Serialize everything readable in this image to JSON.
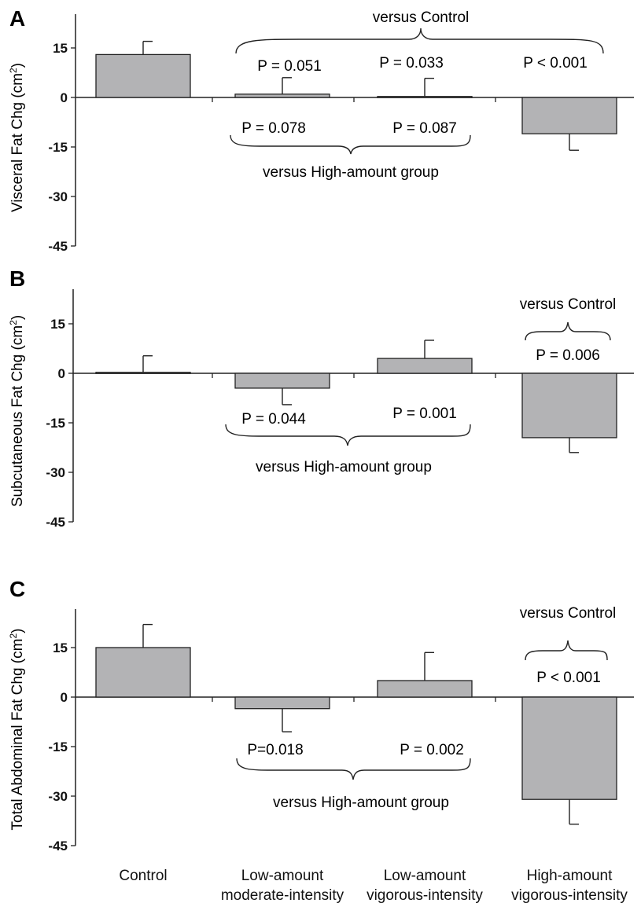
{
  "chart_data": [
    {
      "type": "bar",
      "panel_letter": "A",
      "ylabel": "Visceral Fat Chg (cm²)",
      "ylabel_base": "Visceral Fat Chg (cm",
      "ylabel_sup": "2",
      "ylabel_end": ")",
      "yticks": [
        "15",
        "0",
        "-15",
        "-30",
        "-45"
      ],
      "ylim": [
        -45,
        25
      ],
      "categories": [
        "Control",
        "Low-amount moderate-intensity",
        "Low-amount vigorous-intensity",
        "High-amount vigorous-intensity"
      ],
      "values": [
        13.0,
        1.0,
        0.3,
        -11.0
      ],
      "errors": [
        4.0,
        5.0,
        5.5,
        5.0
      ],
      "annotations": {
        "top_label": "versus Control",
        "top_pvalues": [
          "P = 0.051",
          "P = 0.033",
          "P < 0.001"
        ],
        "bottom_label": "versus High-amount group",
        "bottom_pvalues": [
          "P = 0.078",
          "P = 0.087"
        ]
      }
    },
    {
      "type": "bar",
      "panel_letter": "B",
      "ylabel": "Subcutaneous Fat Chg (cm²)",
      "ylabel_base": "Subcutaneous Fat Chg (cm",
      "ylabel_sup": "2",
      "ylabel_end": ")",
      "yticks": [
        "15",
        "0",
        "-15",
        "-30",
        "-45"
      ],
      "ylim": [
        -45,
        25
      ],
      "categories": [
        "Control",
        "Low-amount moderate-intensity",
        "Low-amount vigorous-intensity",
        "High-amount vigorous-intensity"
      ],
      "values": [
        0.3,
        -4.5,
        4.5,
        -19.5
      ],
      "errors": [
        5.0,
        5.0,
        5.5,
        4.5
      ],
      "annotations": {
        "top_label": "versus Control",
        "top_pvalues": [
          "P = 0.006"
        ],
        "bottom_label": "versus High-amount group",
        "bottom_pvalues": [
          "P = 0.044",
          "P = 0.001"
        ]
      }
    },
    {
      "type": "bar",
      "panel_letter": "C",
      "ylabel": "Total Abdominal Fat Chg (cm²)",
      "ylabel_base": "Total Abdominal Fat Chg (cm",
      "ylabel_sup": "2",
      "ylabel_end": ")",
      "yticks": [
        "15",
        "0",
        "-15",
        "-30",
        "-45"
      ],
      "ylim": [
        -45,
        25
      ],
      "categories": [
        "Control",
        "Low-amount moderate-intensity",
        "Low-amount vigorous-intensity",
        "High-amount vigorous-intensity"
      ],
      "values": [
        15.0,
        -3.5,
        5.0,
        -31.0
      ],
      "errors": [
        7.0,
        7.0,
        8.5,
        7.5
      ],
      "annotations": {
        "top_label": "versus Control",
        "top_pvalues": [
          "P < 0.001"
        ],
        "bottom_label": "versus High-amount group",
        "bottom_pvalues": [
          "P=0.018",
          "P = 0.002"
        ]
      }
    }
  ],
  "x_labels": [
    [
      "Control"
    ],
    [
      "Low-amount",
      "moderate-intensity"
    ],
    [
      "Low-amount",
      "vigorous-intensity"
    ],
    [
      "High-amount",
      "vigorous-intensity"
    ]
  ],
  "colors": {
    "bar_fill": "#b3b3b5",
    "bar_stroke": "#222222",
    "axis": "#222222",
    "text": "#111111"
  }
}
